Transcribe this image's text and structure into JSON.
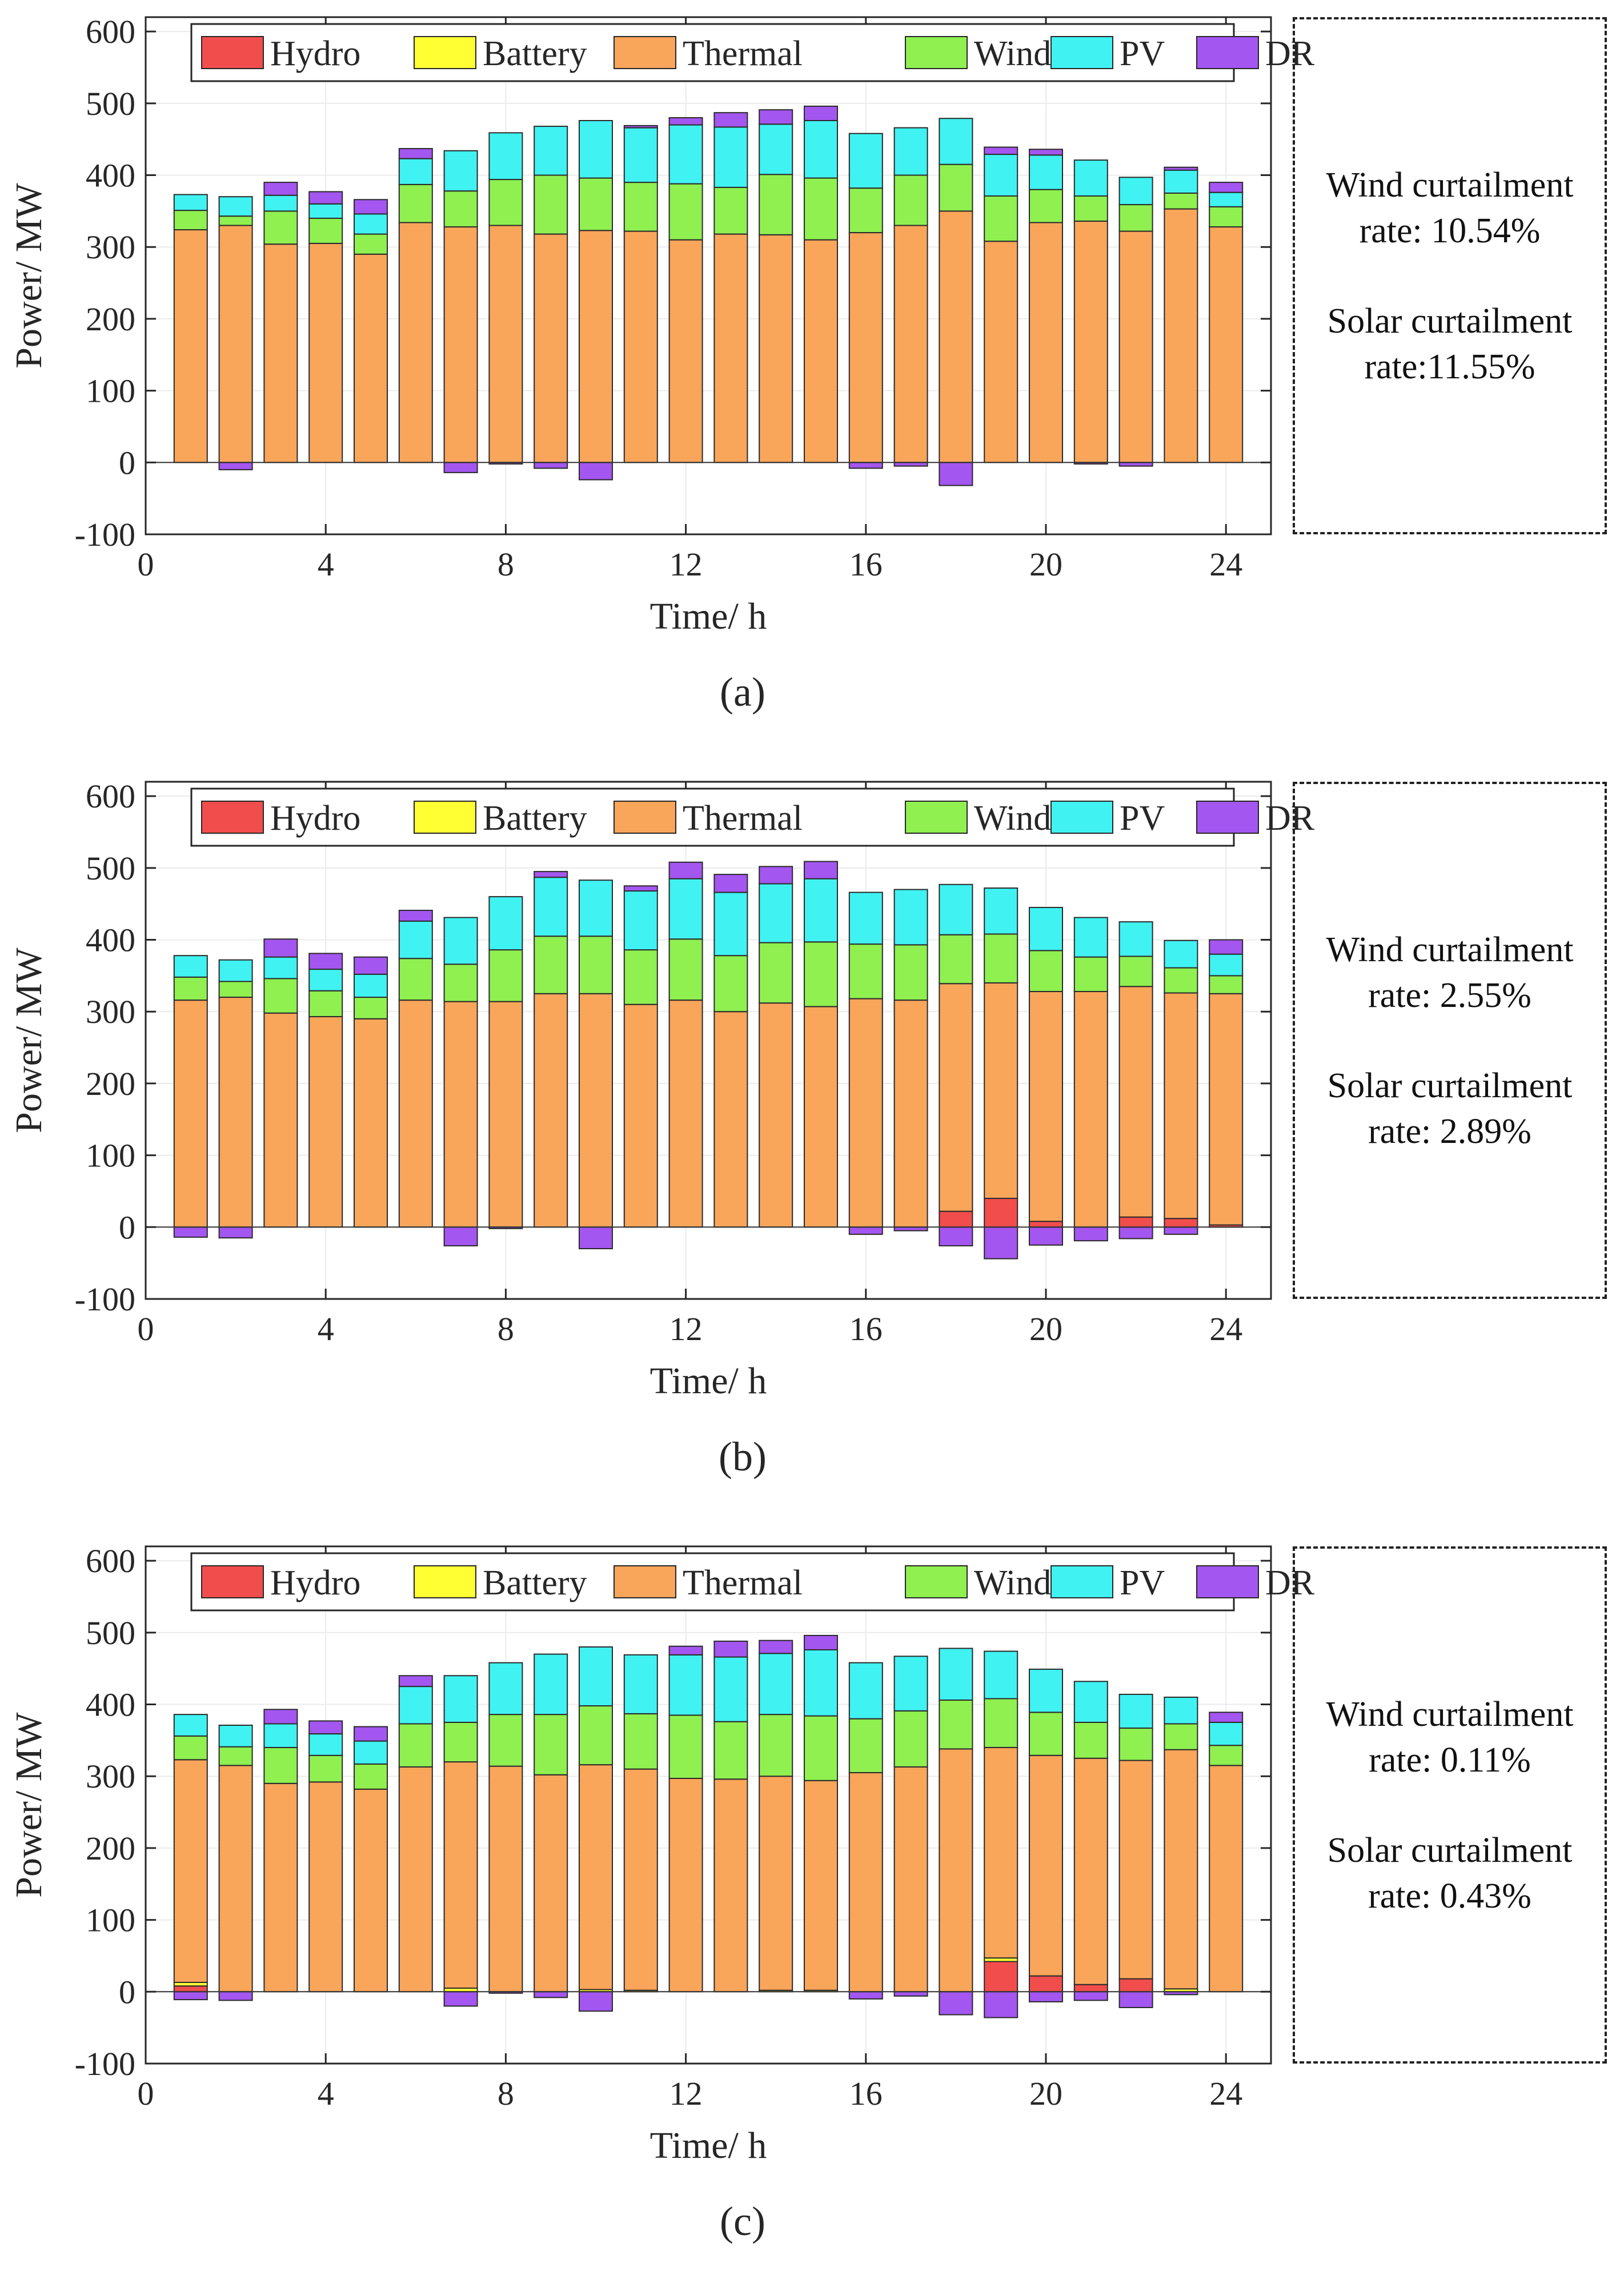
{
  "legend": [
    "Hydro",
    "Battery",
    "Thermal",
    "Wind",
    "PV",
    "DR"
  ],
  "colors": {
    "Hydro": "#f24d4d",
    "Battery": "#ffff33",
    "Thermal": "#f9a55a",
    "Wind": "#8ff050",
    "PV": "#40f2f2",
    "DR": "#a456f0"
  },
  "chart_data": [
    {
      "type": "bar",
      "stacked": true,
      "label": "(a)",
      "xlabel": "Time/ h",
      "ylabel": "Power/ MW",
      "xlim": [
        0,
        25
      ],
      "ylim": [
        -100,
        620
      ],
      "xticks": [
        0,
        4,
        8,
        12,
        16,
        20,
        24
      ],
      "yticks": [
        -100,
        0,
        100,
        200,
        300,
        400,
        500,
        600
      ],
      "categories": [
        1,
        2,
        3,
        4,
        5,
        6,
        7,
        8,
        9,
        10,
        11,
        12,
        13,
        14,
        15,
        16,
        17,
        18,
        19,
        20,
        21,
        22,
        23,
        24
      ],
      "series": [
        {
          "name": "Hydro",
          "values": [
            0,
            0,
            0,
            0,
            0,
            0,
            0,
            0,
            0,
            0,
            0,
            0,
            0,
            0,
            0,
            0,
            0,
            0,
            0,
            0,
            0,
            0,
            0,
            0
          ]
        },
        {
          "name": "Battery",
          "values": [
            0,
            0,
            0,
            0,
            0,
            0,
            0,
            0,
            0,
            0,
            0,
            0,
            0,
            0,
            0,
            0,
            0,
            0,
            0,
            0,
            0,
            0,
            0,
            0
          ]
        },
        {
          "name": "Thermal",
          "values": [
            324,
            330,
            304,
            305,
            290,
            334,
            328,
            330,
            318,
            323,
            322,
            310,
            318,
            317,
            310,
            320,
            330,
            350,
            308,
            334,
            336,
            322,
            353,
            328
          ]
        },
        {
          "name": "Wind",
          "values": [
            27,
            13,
            46,
            35,
            28,
            53,
            50,
            64,
            82,
            73,
            68,
            78,
            65,
            84,
            86,
            62,
            70,
            65,
            63,
            46,
            35,
            37,
            22,
            28
          ]
        },
        {
          "name": "PV",
          "values": [
            22,
            27,
            22,
            20,
            28,
            36,
            56,
            65,
            68,
            80,
            76,
            82,
            84,
            70,
            80,
            76,
            66,
            64,
            58,
            48,
            50,
            38,
            32,
            20
          ]
        },
        {
          "name": "DR",
          "values": [
            0,
            -10,
            18,
            17,
            20,
            14,
            -14,
            -2,
            -8,
            -24,
            3,
            10,
            20,
            20,
            20,
            -8,
            -5,
            -32,
            10,
            8,
            -2,
            -5,
            4,
            14
          ]
        }
      ],
      "annotation": [
        "Wind curtailment",
        "rate: 10.54%",
        "Solar curtailment",
        "rate:11.55%"
      ]
    },
    {
      "type": "bar",
      "stacked": true,
      "label": "(b)",
      "xlabel": "Time/ h",
      "ylabel": "Power/ MW",
      "xlim": [
        0,
        25
      ],
      "ylim": [
        -100,
        620
      ],
      "xticks": [
        0,
        4,
        8,
        12,
        16,
        20,
        24
      ],
      "yticks": [
        -100,
        0,
        100,
        200,
        300,
        400,
        500,
        600
      ],
      "categories": [
        1,
        2,
        3,
        4,
        5,
        6,
        7,
        8,
        9,
        10,
        11,
        12,
        13,
        14,
        15,
        16,
        17,
        18,
        19,
        20,
        21,
        22,
        23,
        24
      ],
      "series": [
        {
          "name": "Hydro",
          "values": [
            0,
            0,
            0,
            0,
            0,
            0,
            0,
            0,
            0,
            0,
            0,
            0,
            0,
            0,
            0,
            0,
            0,
            22,
            40,
            8,
            0,
            14,
            12,
            3
          ]
        },
        {
          "name": "Battery",
          "values": [
            0,
            0,
            0,
            0,
            0,
            0,
            0,
            0,
            0,
            0,
            0,
            0,
            0,
            0,
            0,
            0,
            0,
            0,
            0,
            0,
            0,
            0,
            0,
            0
          ]
        },
        {
          "name": "Thermal",
          "values": [
            316,
            320,
            298,
            293,
            290,
            316,
            314,
            314,
            325,
            325,
            310,
            316,
            300,
            312,
            307,
            318,
            316,
            317,
            300,
            320,
            328,
            321,
            314,
            322
          ]
        },
        {
          "name": "Wind",
          "values": [
            32,
            22,
            48,
            36,
            30,
            58,
            52,
            72,
            80,
            80,
            76,
            85,
            78,
            84,
            90,
            76,
            77,
            68,
            68,
            57,
            48,
            42,
            35,
            25
          ]
        },
        {
          "name": "PV",
          "values": [
            30,
            30,
            30,
            30,
            32,
            52,
            65,
            74,
            82,
            78,
            82,
            84,
            88,
            82,
            88,
            72,
            77,
            70,
            64,
            60,
            55,
            48,
            38,
            30
          ]
        },
        {
          "name": "DR",
          "values": [
            -14,
            -15,
            25,
            22,
            24,
            15,
            -26,
            -2,
            8,
            -30,
            7,
            23,
            25,
            24,
            24,
            -10,
            -5,
            -26,
            -44,
            -25,
            -19,
            -16,
            -10,
            20
          ]
        }
      ],
      "annotation": [
        "Wind curtailment",
        "rate: 2.55%",
        "Solar curtailment",
        "rate: 2.89%"
      ]
    },
    {
      "type": "bar",
      "stacked": true,
      "label": "(c)",
      "xlabel": "Time/ h",
      "ylabel": "Power/ MW",
      "xlim": [
        0,
        25
      ],
      "ylim": [
        -100,
        620
      ],
      "xticks": [
        0,
        4,
        8,
        12,
        16,
        20,
        24
      ],
      "yticks": [
        -100,
        0,
        100,
        200,
        300,
        400,
        500,
        600
      ],
      "categories": [
        1,
        2,
        3,
        4,
        5,
        6,
        7,
        8,
        9,
        10,
        11,
        12,
        13,
        14,
        15,
        16,
        17,
        18,
        19,
        20,
        21,
        22,
        23,
        24
      ],
      "series": [
        {
          "name": "Hydro",
          "values": [
            8,
            0,
            0,
            0,
            0,
            0,
            0,
            0,
            0,
            0,
            0,
            0,
            0,
            0,
            0,
            0,
            0,
            0,
            42,
            22,
            10,
            18,
            0,
            0
          ]
        },
        {
          "name": "Battery",
          "values": [
            5,
            0,
            0,
            0,
            0,
            0,
            5,
            0,
            0,
            3,
            2,
            0,
            0,
            2,
            2,
            0,
            0,
            0,
            5,
            0,
            0,
            0,
            4,
            0
          ]
        },
        {
          "name": "Thermal",
          "values": [
            310,
            315,
            290,
            292,
            282,
            313,
            315,
            314,
            302,
            313,
            308,
            297,
            296,
            298,
            292,
            305,
            313,
            338,
            293,
            307,
            315,
            304,
            333,
            315
          ]
        },
        {
          "name": "Wind",
          "values": [
            33,
            26,
            50,
            37,
            35,
            60,
            55,
            72,
            84,
            82,
            77,
            88,
            80,
            86,
            90,
            75,
            78,
            68,
            68,
            60,
            50,
            45,
            36,
            28
          ]
        },
        {
          "name": "PV",
          "values": [
            30,
            30,
            33,
            30,
            32,
            52,
            65,
            72,
            84,
            82,
            82,
            84,
            90,
            85,
            92,
            78,
            76,
            72,
            66,
            60,
            57,
            47,
            37,
            32
          ]
        },
        {
          "name": "DR",
          "values": [
            -11,
            -12,
            20,
            18,
            20,
            15,
            -20,
            -2,
            -8,
            -27,
            0,
            12,
            22,
            18,
            20,
            -10,
            -6,
            -32,
            -36,
            -14,
            -12,
            -22,
            -4,
            14
          ]
        }
      ],
      "annotation": [
        "Wind curtailment",
        "rate: 0.11%",
        "Solar curtailment",
        "rate: 0.43%"
      ]
    }
  ]
}
